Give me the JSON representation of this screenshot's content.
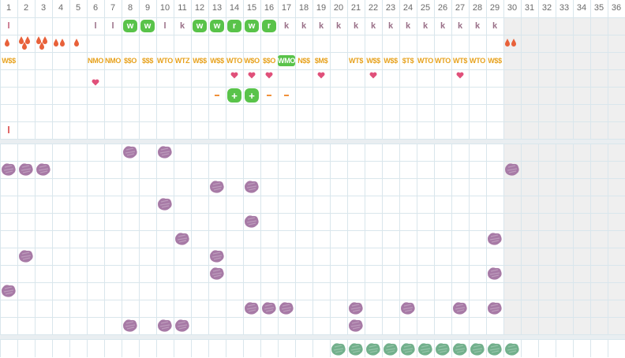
{
  "colors": {
    "grid_line": "#d9e6ec",
    "header_bg": "#ffffff",
    "shaded_bg": "#efefef",
    "section_gap": "#e9eef1",
    "letter_mark": "#9a7088",
    "letter_low": "#c2607a",
    "drop": "#e8613a",
    "heart": "#e0507a",
    "code": "#e7a21e",
    "green_badge": "#59c34a",
    "dash": "#f0913a",
    "purple_blob": "#a77aa6",
    "teal_blob": "#72b08c",
    "red_tick": "#e06a6a"
  },
  "header": {
    "days": [
      "1",
      "2",
      "3",
      "4",
      "5",
      "6",
      "7",
      "8",
      "9",
      "10",
      "11",
      "12",
      "13",
      "14",
      "15",
      "16",
      "17",
      "18",
      "19",
      "20",
      "21",
      "22",
      "23",
      "24",
      "25",
      "26",
      "27",
      "28",
      "29",
      "30",
      "31",
      "32",
      "33",
      "34",
      "35",
      "36"
    ]
  },
  "row1": {
    "marks": [
      {
        "day": 1,
        "t": "l",
        "kind": "letter-low"
      },
      {
        "day": 6,
        "t": "l",
        "kind": "letter"
      },
      {
        "day": 7,
        "t": "l",
        "kind": "letter"
      },
      {
        "day": 8,
        "t": "w",
        "kind": "badge"
      },
      {
        "day": 9,
        "t": "w",
        "kind": "badge"
      },
      {
        "day": 10,
        "t": "l",
        "kind": "letter"
      },
      {
        "day": 11,
        "t": "k",
        "kind": "letter"
      },
      {
        "day": 12,
        "t": "w",
        "kind": "badge"
      },
      {
        "day": 13,
        "t": "w",
        "kind": "badge"
      },
      {
        "day": 14,
        "t": "r",
        "kind": "badge"
      },
      {
        "day": 15,
        "t": "w",
        "kind": "badge"
      },
      {
        "day": 16,
        "t": "r",
        "kind": "badge"
      },
      {
        "day": 17,
        "t": "k",
        "kind": "letter"
      },
      {
        "day": 18,
        "t": "k",
        "kind": "letter"
      },
      {
        "day": 19,
        "t": "k",
        "kind": "letter"
      },
      {
        "day": 20,
        "t": "k",
        "kind": "letter"
      },
      {
        "day": 21,
        "t": "k",
        "kind": "letter"
      },
      {
        "day": 22,
        "t": "k",
        "kind": "letter"
      },
      {
        "day": 23,
        "t": "k",
        "kind": "letter"
      },
      {
        "day": 24,
        "t": "k",
        "kind": "letter"
      },
      {
        "day": 25,
        "t": "k",
        "kind": "letter"
      },
      {
        "day": 26,
        "t": "k",
        "kind": "letter"
      },
      {
        "day": 27,
        "t": "k",
        "kind": "letter"
      },
      {
        "day": 28,
        "t": "k",
        "kind": "letter"
      },
      {
        "day": 29,
        "t": "k",
        "kind": "letter"
      }
    ]
  },
  "row2": {
    "drops": [
      {
        "day": 1,
        "n": 1
      },
      {
        "day": 2,
        "n": 3
      },
      {
        "day": 3,
        "n": 3
      },
      {
        "day": 4,
        "n": 2
      },
      {
        "day": 5,
        "n": 1
      },
      {
        "day": 30,
        "n": 2
      }
    ]
  },
  "row3": {
    "codes": [
      {
        "day": 1,
        "t": "W$$"
      },
      {
        "day": 6,
        "t": "NMO"
      },
      {
        "day": 7,
        "t": "NMO"
      },
      {
        "day": 8,
        "t": "$$O"
      },
      {
        "day": 9,
        "t": "$$$"
      },
      {
        "day": 10,
        "t": "WTO"
      },
      {
        "day": 11,
        "t": "WTZ"
      },
      {
        "day": 12,
        "t": "W$$"
      },
      {
        "day": 13,
        "t": "W$$"
      },
      {
        "day": 14,
        "t": "WTO"
      },
      {
        "day": 15,
        "t": "W$O"
      },
      {
        "day": 16,
        "t": "$$O"
      },
      {
        "day": 17,
        "t": "WMO",
        "highlight": true
      },
      {
        "day": 18,
        "t": "N$$"
      },
      {
        "day": 19,
        "t": "$M$"
      },
      {
        "day": 21,
        "t": "WT$"
      },
      {
        "day": 22,
        "t": "W$$"
      },
      {
        "day": 23,
        "t": "W$$"
      },
      {
        "day": 24,
        "t": "$T$"
      },
      {
        "day": 25,
        "t": "WTO"
      },
      {
        "day": 26,
        "t": "WTO"
      },
      {
        "day": 27,
        "t": "WT$"
      },
      {
        "day": 28,
        "t": "WTO"
      },
      {
        "day": 29,
        "t": "W$$"
      }
    ]
  },
  "row4": {
    "hearts": [
      14,
      15,
      16,
      19,
      22,
      27
    ],
    "hearts_low": [
      6
    ]
  },
  "row5": {
    "items": [
      {
        "day": 13,
        "kind": "dash"
      },
      {
        "day": 14,
        "kind": "plus"
      },
      {
        "day": 15,
        "kind": "plus"
      },
      {
        "day": 16,
        "kind": "dash"
      },
      {
        "day": 17,
        "kind": "dash"
      }
    ]
  },
  "row7": {
    "ticks": [
      1
    ]
  },
  "blobs": {
    "purple": [
      {
        "row": 0,
        "days": [
          8,
          10
        ]
      },
      {
        "row": 1,
        "days": [
          1,
          2,
          3,
          30
        ]
      },
      {
        "row": 2,
        "days": [
          13,
          15
        ]
      },
      {
        "row": 3,
        "days": [
          10
        ]
      },
      {
        "row": 4,
        "days": [
          15
        ]
      },
      {
        "row": 5,
        "days": [
          11,
          29
        ]
      },
      {
        "row": 6,
        "days": [
          2,
          13
        ]
      },
      {
        "row": 7,
        "days": [
          13,
          29
        ]
      },
      {
        "row": 8,
        "days": [
          1
        ]
      },
      {
        "row": 9,
        "days": [
          15,
          16,
          17,
          21,
          24,
          27,
          29
        ]
      },
      {
        "row": 10,
        "days": [
          8,
          10,
          11,
          21
        ]
      }
    ],
    "teal": [
      20,
      21,
      22,
      23,
      24,
      25,
      26,
      27,
      28,
      29,
      30
    ]
  }
}
